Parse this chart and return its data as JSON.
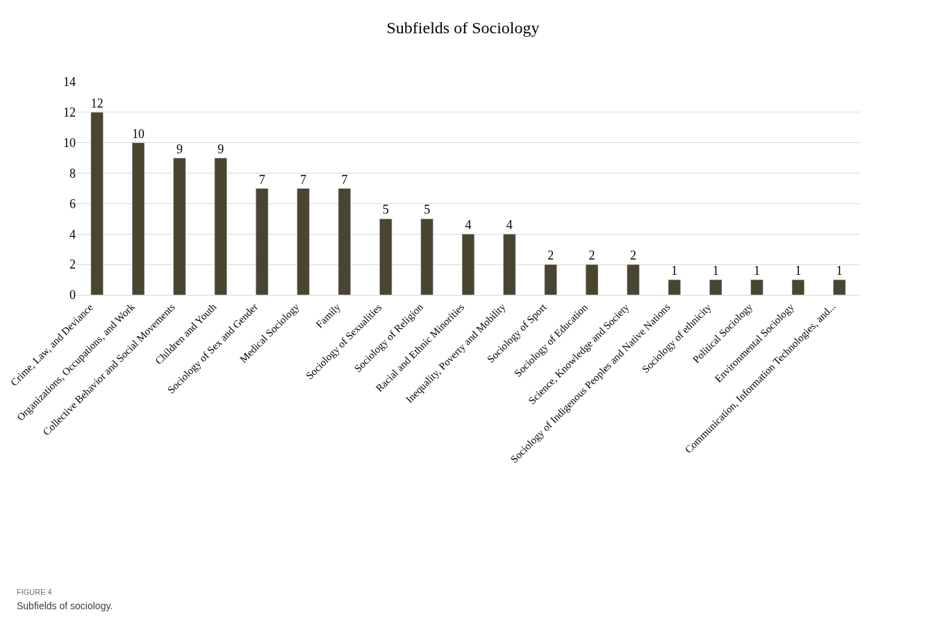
{
  "chart_data": {
    "type": "bar",
    "title": "Subfields of Sociology",
    "categories": [
      "Crime, Law, and Deviance",
      "Organizations, Occupations, and Work",
      "Collective Behavior and Social Movements",
      "Children and Youth",
      "Sociology of Sex and Gender",
      "Medical Sociology",
      "Family",
      "Sociology of Sexualities",
      "Sociology of Religion",
      "Racial and Ethnic Minorities",
      "Inequality, Poverty and Mobility",
      "Sociology of Sport",
      "Sociology of Education",
      "Science, Knowledge and Society",
      "Sociology of Indigenous Peoples and Native Nations",
      "Sociology of ethnicity",
      "Political Sociology",
      "Environmental Sociology",
      "Communication, Information Technologies, and..."
    ],
    "values": [
      12,
      10,
      9,
      9,
      7,
      7,
      7,
      5,
      5,
      4,
      4,
      2,
      2,
      2,
      1,
      1,
      1,
      1,
      1
    ],
    "color": "#4a4530",
    "ylim": [
      0,
      14
    ],
    "yticks": [
      0,
      2,
      4,
      6,
      8,
      10,
      12,
      14
    ],
    "grid": "y",
    "data_labels": true,
    "annotations": [
      "FIGURE 4",
      "Subfields of sociology."
    ]
  }
}
